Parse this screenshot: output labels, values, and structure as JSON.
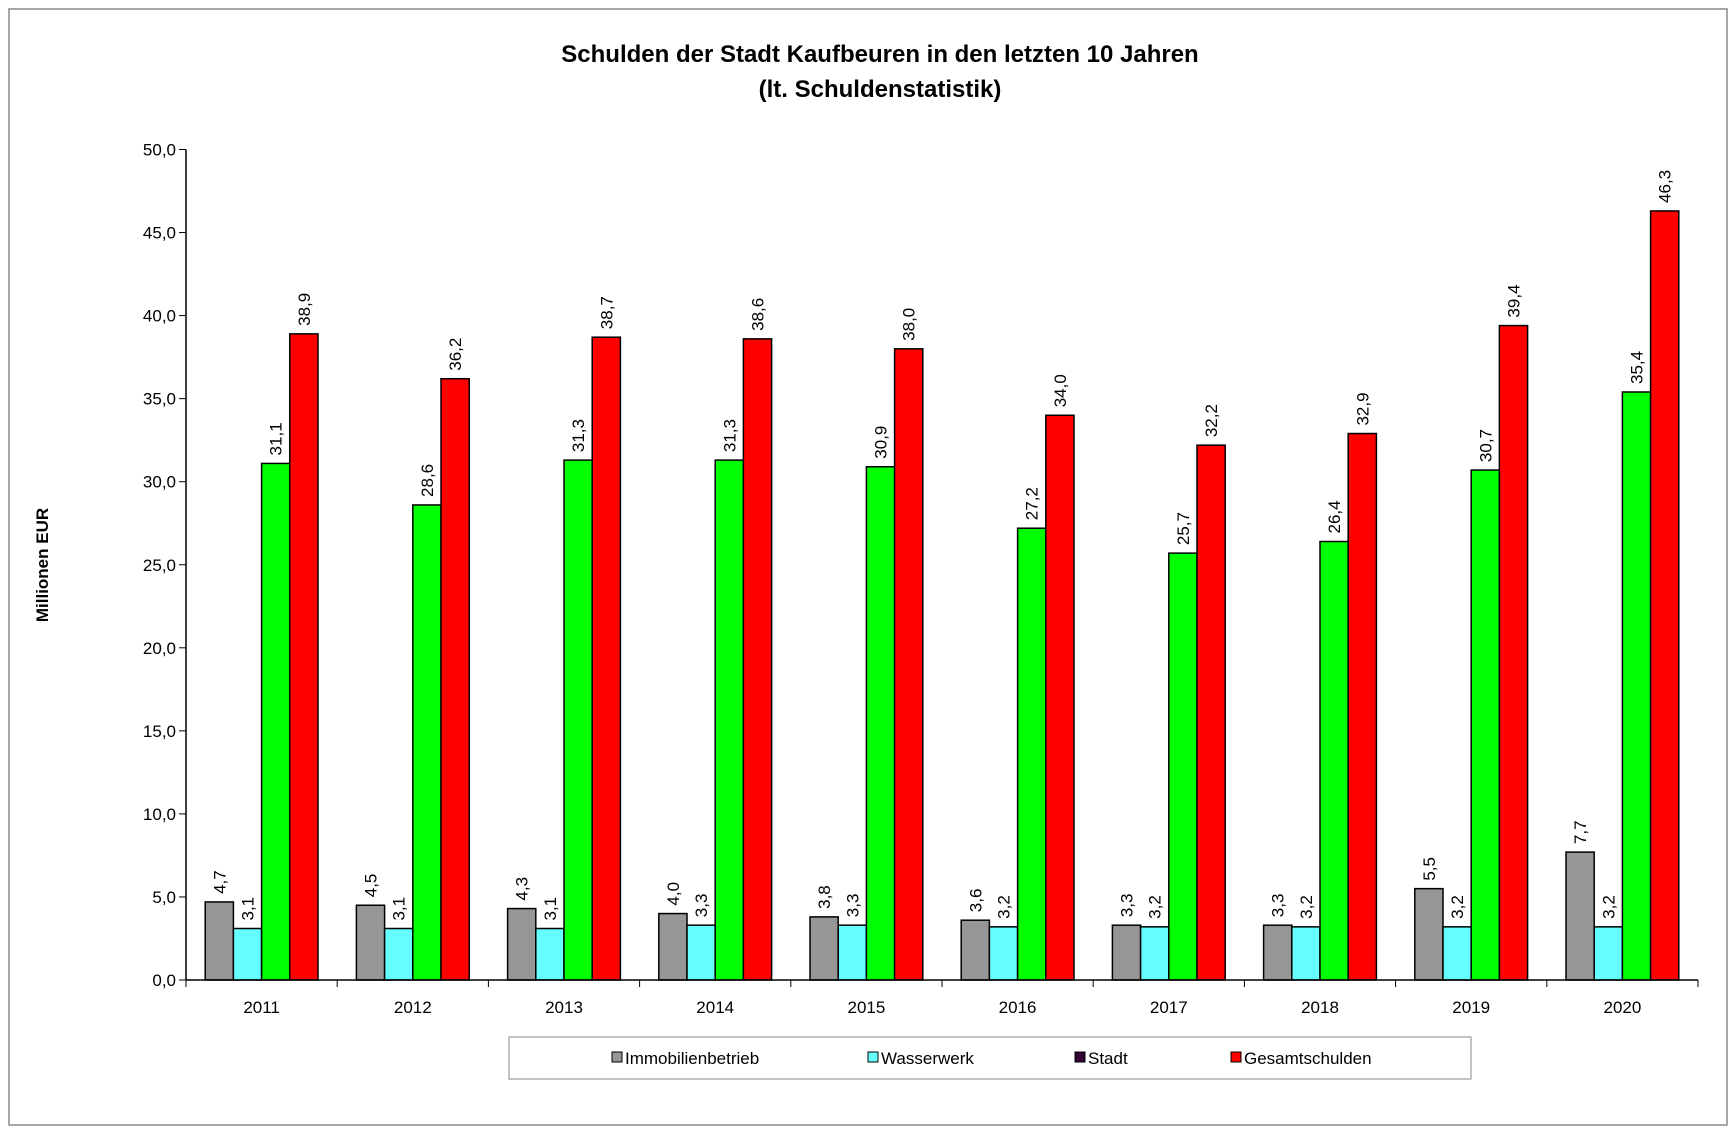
{
  "chart_data": {
    "type": "bar",
    "title": "Schulden der Stadt Kaufbeuren in den letzten 10 Jahren",
    "subtitle": "(lt. Schuldenstatistik)",
    "y_label": "Millionen EUR",
    "categories": [
      "2011",
      "2012",
      "2013",
      "2014",
      "2015",
      "2016",
      "2017",
      "2018",
      "2019",
      "2020"
    ],
    "series": [
      {
        "name": "Immobilienbetrieb",
        "color": "#969696",
        "legend_color": "#969696",
        "values": [
          4.7,
          4.5,
          4.3,
          4.0,
          3.8,
          3.6,
          3.3,
          3.3,
          5.5,
          7.7
        ],
        "value_labels": [
          "4,7",
          "4,5",
          "4,3",
          "4,0",
          "3,8",
          "3,6",
          "3,3",
          "3,3",
          "5,5",
          "7,7"
        ]
      },
      {
        "name": "Wasserwerk",
        "color": "#66ffff",
        "legend_color": "#66ffff",
        "values": [
          3.1,
          3.1,
          3.1,
          3.3,
          3.3,
          3.2,
          3.2,
          3.2,
          3.2,
          3.2
        ],
        "value_labels": [
          "3,1",
          "3,1",
          "3,1",
          "3,3",
          "3,3",
          "3,2",
          "3,2",
          "3,2",
          "3,2",
          "3,2"
        ]
      },
      {
        "name": "Stadt",
        "color": "#00ff00",
        "legend_color": "#330033",
        "values": [
          31.1,
          28.6,
          31.3,
          31.3,
          30.9,
          27.2,
          25.7,
          26.4,
          30.7,
          35.4
        ],
        "value_labels": [
          "31,1",
          "28,6",
          "31,3",
          "31,3",
          "30,9",
          "27,2",
          "25,7",
          "26,4",
          "30,7",
          "35,4"
        ]
      },
      {
        "name": "Gesamtschulden",
        "color": "#ff0000",
        "legend_color": "#ff0000",
        "values": [
          38.9,
          36.2,
          38.7,
          38.6,
          38.0,
          34.0,
          32.2,
          32.9,
          39.4,
          46.3
        ],
        "value_labels": [
          "38,9",
          "36,2",
          "38,7",
          "38,6",
          "38,0",
          "34,0",
          "32,2",
          "32,9",
          "39,4",
          "46,3"
        ]
      }
    ],
    "ylim": [
      0,
      50
    ],
    "yticks": [
      {
        "value": 0,
        "label": "0,0"
      },
      {
        "value": 5,
        "label": "5,0"
      },
      {
        "value": 10,
        "label": "10,0"
      },
      {
        "value": 15,
        "label": "15,0"
      },
      {
        "value": 20,
        "label": "20,0"
      },
      {
        "value": 25,
        "label": "25,0"
      },
      {
        "value": 30,
        "label": "30,0"
      },
      {
        "value": 35,
        "label": "35,0"
      },
      {
        "value": 40,
        "label": "40,0"
      },
      {
        "value": 45,
        "label": "45,0"
      },
      {
        "value": 50,
        "label": "50,0"
      }
    ],
    "legend": "bottom"
  }
}
